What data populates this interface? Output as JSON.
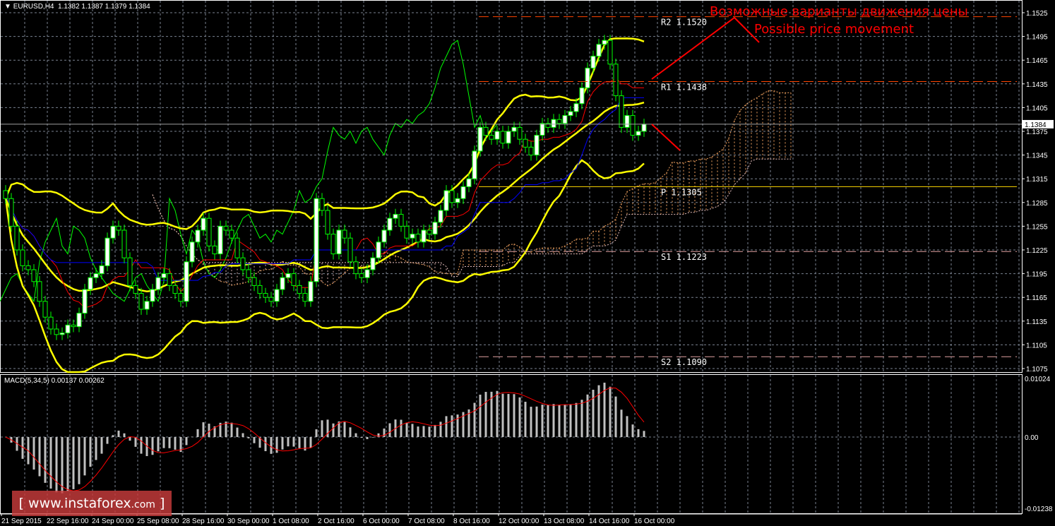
{
  "header": {
    "symbol": "EURUSD,H4",
    "ohlc": "1.1382 1.1387 1.1379 1.1384"
  },
  "macd_label": "MACD(5,34,5) 0.00137 0.00262",
  "annotations": {
    "ru": "Возможные варианты движения цены",
    "en": "Possible price movement"
  },
  "watermark": {
    "text": "www.instaforex",
    "suffix": ".com",
    "open": "[",
    "close": "]"
  },
  "colors": {
    "background": "#000000",
    "grid": "#7a8290",
    "candle_up": "#ffffff",
    "candle_edge": "#00ff00",
    "bollinger": "#ffff00",
    "tenkan": "#ff0000",
    "kijun": "#0000ff",
    "chikou": "#00ff00",
    "cloud": "#f4a460",
    "arrow": "#ff0000",
    "pivot": "#ffd700",
    "resistance": "#ff4500",
    "support": "#e0a0a0",
    "macd_hist": "#c0c0c0",
    "macd_signal": "#ff0000"
  },
  "chart_data": {
    "type": "candlestick",
    "symbol": "EURUSD",
    "timeframe": "H4",
    "last_price": 1.1384,
    "ylim": [
      1.106,
      1.1545
    ],
    "y_ticks": [
      "1.1525",
      "1.1495",
      "1.1465",
      "1.1435",
      "1.1405",
      "1.1375",
      "1.1345",
      "1.1315",
      "1.1285",
      "1.1255",
      "1.1225",
      "1.1195",
      "1.1165",
      "1.1135",
      "1.1105",
      "1.1075"
    ],
    "y_tick_values": [
      1.1525,
      1.1495,
      1.1465,
      1.1435,
      1.1405,
      1.1375,
      1.1345,
      1.1315,
      1.1285,
      1.1255,
      1.1225,
      1.1195,
      1.1165,
      1.1135,
      1.1105,
      1.1075
    ],
    "x_ticks": [
      "21 Sep 2015",
      "22 Sep 16:00",
      "24 Sep 00:00",
      "25 Sep 08:00",
      "28 Sep 16:00",
      "30 Sep 00:00",
      "1 Oct 08:00",
      "2 Oct 16:00",
      "6 Oct 00:00",
      "7 Oct 08:00",
      "8 Oct 16:00",
      "12 Oct 00:00",
      "13 Oct 08:00",
      "14 Oct 16:00",
      "16 Oct 00:00"
    ],
    "bars_per_x_tick": 8,
    "closes": [
      1.129,
      1.1255,
      1.1225,
      1.1205,
      1.12,
      1.1185,
      1.116,
      1.114,
      1.1125,
      1.1118,
      1.112,
      1.113,
      1.1128,
      1.1145,
      1.1175,
      1.119,
      1.1195,
      1.1205,
      1.124,
      1.1255,
      1.125,
      1.1215,
      1.118,
      1.117,
      1.115,
      1.116,
      1.1175,
      1.119,
      1.1195,
      1.118,
      1.117,
      1.116,
      1.121,
      1.1235,
      1.125,
      1.1265,
      1.123,
      1.122,
      1.1255,
      1.125,
      1.124,
      1.1215,
      1.12,
      1.119,
      1.118,
      1.117,
      1.1165,
      1.116,
      1.1175,
      1.119,
      1.1195,
      1.118,
      1.117,
      1.116,
      1.1185,
      1.129,
      1.1275,
      1.1245,
      1.122,
      1.125,
      1.124,
      1.121,
      1.1195,
      1.119,
      1.12,
      1.1215,
      1.1235,
      1.125,
      1.1265,
      1.127,
      1.1255,
      1.124,
      1.1245,
      1.1235,
      1.125,
      1.1245,
      1.126,
      1.1275,
      1.13,
      1.1285,
      1.129,
      1.1305,
      1.1315,
      1.135,
      1.138,
      1.137,
      1.1365,
      1.1375,
      1.136,
      1.1375,
      1.138,
      1.1365,
      1.1355,
      1.1345,
      1.137,
      1.1385,
      1.138,
      1.139,
      1.1385,
      1.1395,
      1.14,
      1.141,
      1.143,
      1.1455,
      1.147,
      1.1485,
      1.149,
      1.146,
      1.142,
      1.138,
      1.1395,
      1.137,
      1.1375,
      1.1384
    ],
    "pivots": [
      {
        "label": "R2",
        "value": "1.1520",
        "type": "resistance"
      },
      {
        "label": "R1",
        "value": "1.1438",
        "type": "resistance"
      },
      {
        "label": "P",
        "value": "1.1305",
        "type": "pivot"
      },
      {
        "label": "S1",
        "value": "1.1223",
        "type": "support"
      },
      {
        "label": "S2",
        "value": "1.1090",
        "type": "support"
      }
    ],
    "indicators": [
      "Bollinger Bands",
      "Ichimoku Kinko Hyo",
      "MACD(5,34,5)"
    ],
    "macd": {
      "label": "MACD(5,34,5)",
      "value": 0.00137,
      "signal": 0.00262,
      "ylim": [
        -0.01238,
        0.01024
      ],
      "y_ticks": [
        "0.01024",
        "0.00",
        "-0.01238"
      ],
      "y_tick_values": [
        0.01024,
        0,
        -0.01238
      ]
    }
  }
}
